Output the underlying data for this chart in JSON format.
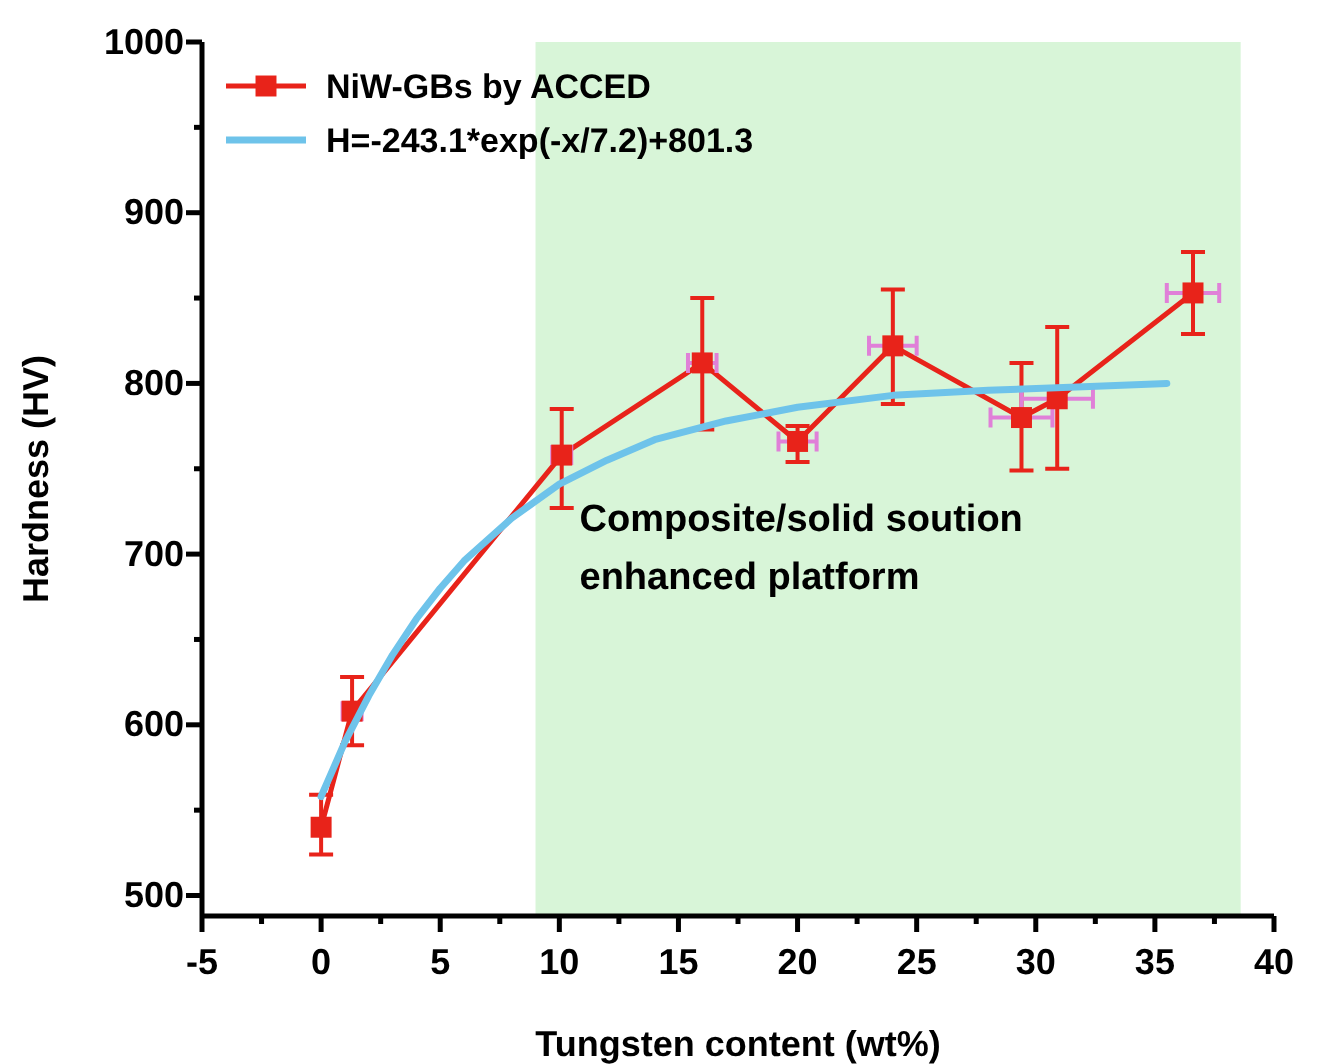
{
  "chart_data": {
    "type": "line",
    "xlabel": "Tungsten content (wt%)",
    "ylabel": "Hardness (HV)",
    "xlim": [
      -5,
      40
    ],
    "ylim": [
      488,
      1000
    ],
    "xticks": [
      -5,
      {
        "value": -2.5,
        "label": null
      },
      0,
      {
        "value": 2.5,
        "label": null
      },
      5,
      {
        "value": 7.5,
        "label": null
      },
      10,
      {
        "value": 12.5,
        "label": null
      },
      15,
      {
        "value": 17.5,
        "label": null
      },
      20,
      {
        "value": 22.5,
        "label": null
      },
      25,
      {
        "value": 27.5,
        "label": null
      },
      30,
      {
        "value": 32.5,
        "label": null
      },
      35,
      {
        "value": 37.5,
        "label": null
      },
      40
    ],
    "yticks": [
      500,
      {
        "value": 550,
        "label": null
      },
      600,
      {
        "value": 650,
        "label": null
      },
      700,
      {
        "value": 750,
        "label": null
      },
      800,
      {
        "value": 850,
        "label": null
      },
      900,
      {
        "value": 950,
        "label": null
      },
      1000
    ],
    "legend": "top left",
    "grid": false,
    "line_style": "solid",
    "bands": [
      {
        "axis": "x",
        "from": 9,
        "to": 38.6,
        "label": "Composite/solid soution enhanced platform",
        "color": "#d8f5d8"
      }
    ],
    "series": [
      {
        "name": "NiW-GBs by ACCED",
        "color": "#e8231a",
        "marker": "square",
        "x": [
          0,
          1.3,
          10.1,
          16.0,
          20.0,
          24.0,
          29.4,
          30.9,
          36.6
        ],
        "values": [
          540,
          608,
          758,
          812,
          766,
          822,
          780,
          791,
          853
        ],
        "errors": [
          [
            524,
            559
          ],
          [
            588,
            628
          ],
          [
            727,
            785
          ],
          [
            773,
            850
          ],
          [
            754,
            775
          ],
          [
            788,
            855
          ],
          [
            749,
            812
          ],
          [
            750,
            833
          ],
          [
            829,
            877
          ]
        ],
        "xerrors": [
          null,
          0.4,
          0.4,
          0.6,
          0.8,
          1.0,
          1.3,
          1.5,
          1.1
        ]
      },
      {
        "name": "H=-243.1*exp(-x/7.2)+801.3",
        "color": "#6ec3ea",
        "marker": "none",
        "x": [
          0,
          1,
          2,
          3,
          4,
          5,
          6,
          8,
          10,
          12,
          14,
          17,
          20,
          24,
          28,
          32,
          35.5
        ],
        "values": [
          558,
          590,
          617,
          641,
          662,
          680,
          696,
          721,
          741,
          755,
          767,
          778,
          786,
          793,
          796,
          798,
          800
        ]
      }
    ]
  }
}
